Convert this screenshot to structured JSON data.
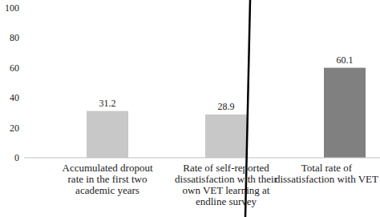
{
  "chart_data": {
    "type": "bar",
    "categories": [
      "Accumulated dropout\nrate in the first two\nacademic years",
      "Rate of self-reported\ndissatisfaction with their\nown VET learning at\nendline survey",
      "Total rate of\ndissatisfaction with VET"
    ],
    "values": [
      31.2,
      28.9,
      60.1
    ],
    "colors": [
      "#c8c8c8",
      "#c8c8c8",
      "#808080"
    ],
    "ylim": [
      0,
      100
    ],
    "yticks": [
      0,
      20,
      40,
      60,
      80,
      100
    ],
    "grid": false,
    "data_labels": true
  }
}
